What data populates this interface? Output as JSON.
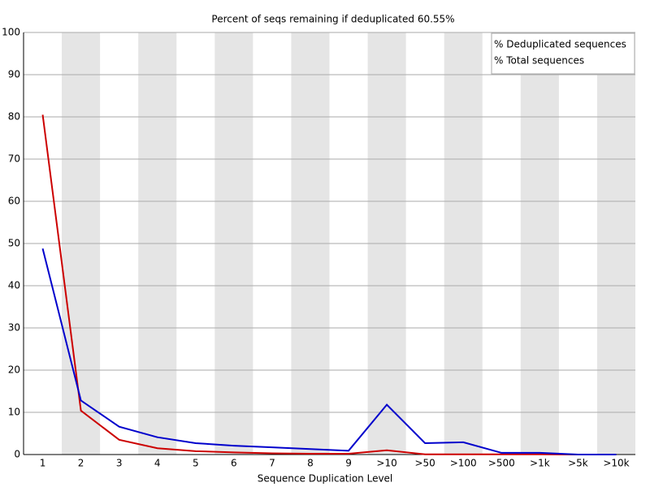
{
  "chart_data": {
    "type": "line",
    "title": "Percent of seqs remaining if deduplicated 60.55%",
    "x_label": "Sequence Duplication Level",
    "categories": [
      "1",
      "2",
      "3",
      "4",
      "5",
      "6",
      "7",
      "8",
      "9",
      ">10",
      ">50",
      ">100",
      ">500",
      ">1k",
      ">5k",
      ">10k"
    ],
    "series": [
      {
        "name": "% Deduplicated sequences",
        "color": "#cc0000",
        "values": [
          80.5,
          10.4,
          3.5,
          1.5,
          0.8,
          0.5,
          0.3,
          0.2,
          0.2,
          1.0,
          0.05,
          0.05,
          0.05,
          0.05,
          0,
          0
        ]
      },
      {
        "name": "% Total sequences",
        "color": "#0000cc",
        "values": [
          48.8,
          12.8,
          6.6,
          4.1,
          2.7,
          2.1,
          1.7,
          1.3,
          0.9,
          11.8,
          2.7,
          2.9,
          0.4,
          0.4,
          0,
          0
        ]
      }
    ],
    "ylim": [
      0,
      100
    ],
    "yticks": [
      0,
      10,
      20,
      30,
      40,
      50,
      60,
      70,
      80,
      90,
      100
    ],
    "grid": true,
    "legend": "top-right"
  }
}
